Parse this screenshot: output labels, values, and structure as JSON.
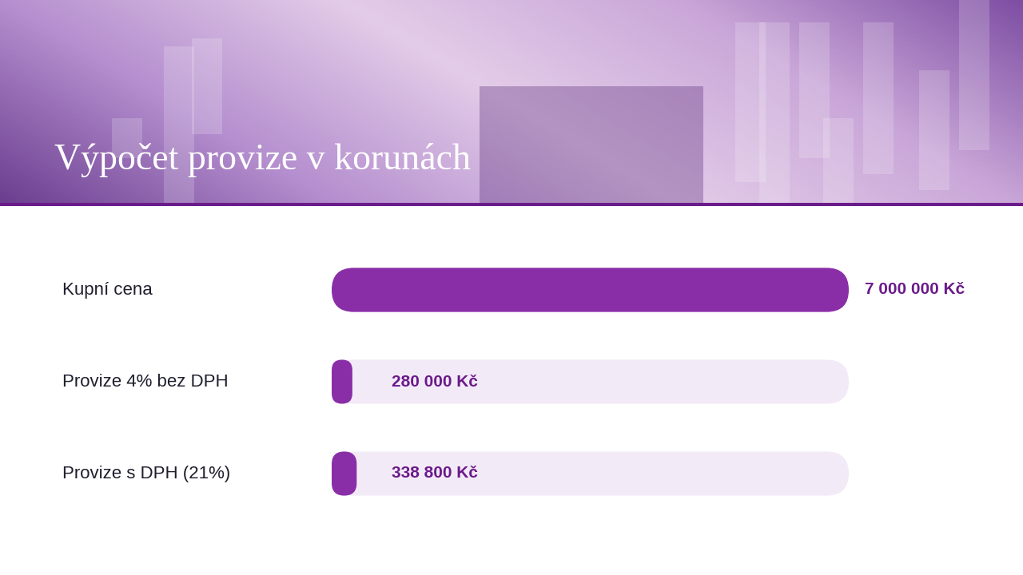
{
  "chart_data": {
    "type": "bar",
    "orientation": "horizontal",
    "title": "Výpočet provize v korunách",
    "categories": [
      "Kupní cena",
      "Provize 4% bez DPH",
      "Provize s DPH (21%)"
    ],
    "values": [
      7000000,
      280000,
      338800
    ],
    "value_labels": [
      "7 000 000 Kč",
      "280 000 Kč",
      "338 800 Kč"
    ],
    "xlim": [
      0,
      7000000
    ],
    "tick_labels": false,
    "data_labels": true,
    "color": "#8a2ea8",
    "grid": false
  }
}
